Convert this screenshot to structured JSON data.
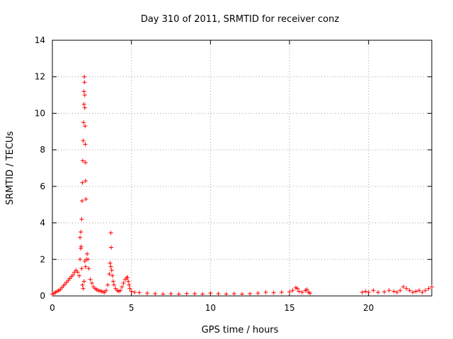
{
  "chart_data": {
    "type": "scatter",
    "title": "Day 310 of 2011, SRMTID for receiver conz",
    "xlabel": "GPS time / hours",
    "ylabel": "SRMTID / TECUs",
    "xlim": [
      0,
      24
    ],
    "ylim": [
      0,
      14
    ],
    "x_ticks": [
      0,
      5,
      10,
      15,
      20
    ],
    "y_ticks": [
      0,
      2,
      4,
      6,
      8,
      10,
      12,
      14
    ],
    "x_tick_labels": [
      "0",
      "5",
      "10",
      "15",
      "20"
    ],
    "y_tick_labels": [
      "0",
      "2",
      "4",
      "6",
      "8",
      "10",
      "12",
      "14"
    ],
    "grid": true,
    "marker": "+",
    "color": "#ff0000",
    "series": [
      {
        "name": "SRMTID",
        "x": [
          0.0,
          0.1,
          0.2,
          0.3,
          0.4,
          0.5,
          0.6,
          0.7,
          0.8,
          0.9,
          1.0,
          1.1,
          1.2,
          1.3,
          1.4,
          1.5,
          1.6,
          1.7,
          1.75,
          1.8,
          1.85,
          1.9,
          1.95,
          2.0,
          2.05,
          2.1,
          2.15,
          2.2,
          2.25,
          2.3,
          2.4,
          2.5,
          2.6,
          2.7,
          2.8,
          2.9,
          3.0,
          3.1,
          3.2,
          3.3,
          3.4,
          3.5,
          3.6,
          3.65,
          3.7,
          3.75,
          3.8,
          3.85,
          3.9,
          4.0,
          4.1,
          4.2,
          4.3,
          4.4,
          4.5,
          4.6,
          4.7,
          4.75,
          4.8,
          4.85,
          4.9,
          5.0,
          5.2,
          5.5,
          6.0,
          6.5,
          7.0,
          7.5,
          8.0,
          8.5,
          9.0,
          9.5,
          10.0,
          10.5,
          11.0,
          11.5,
          12.0,
          12.5,
          13.0,
          13.5,
          14.0,
          14.5,
          15.0,
          15.2,
          15.4,
          15.5,
          15.6,
          15.8,
          16.0,
          16.1,
          16.2,
          16.3,
          19.6,
          19.8,
          20.0,
          20.3,
          20.6,
          21.0,
          21.3,
          21.6,
          21.8,
          22.0,
          22.2,
          22.4,
          22.6,
          22.8,
          23.0,
          23.2,
          23.4,
          23.6,
          23.8,
          24.0,
          1.75,
          1.8,
          1.82,
          1.85,
          1.88,
          1.9,
          1.92,
          1.95,
          1.97,
          2.0,
          2.0,
          2.02,
          2.03,
          2.05,
          2.05,
          2.07,
          2.08,
          2.1,
          2.1,
          2.12,
          3.7,
          3.72
        ],
        "y": [
          0.1,
          0.15,
          0.2,
          0.25,
          0.3,
          0.35,
          0.45,
          0.55,
          0.65,
          0.75,
          0.85,
          0.95,
          1.05,
          1.15,
          1.3,
          1.4,
          1.3,
          1.1,
          2.0,
          2.6,
          1.5,
          0.6,
          0.4,
          0.8,
          1.9,
          1.6,
          2.0,
          2.3,
          2.0,
          1.5,
          0.9,
          0.7,
          0.5,
          0.4,
          0.35,
          0.3,
          0.28,
          0.25,
          0.22,
          0.2,
          0.3,
          0.6,
          1.2,
          1.8,
          1.6,
          1.4,
          1.1,
          0.8,
          0.6,
          0.4,
          0.3,
          0.25,
          0.3,
          0.5,
          0.7,
          0.9,
          1.0,
          1.0,
          0.8,
          0.6,
          0.4,
          0.25,
          0.2,
          0.18,
          0.15,
          0.12,
          0.1,
          0.12,
          0.1,
          0.13,
          0.12,
          0.1,
          0.15,
          0.12,
          0.1,
          0.12,
          0.1,
          0.12,
          0.15,
          0.2,
          0.18,
          0.2,
          0.22,
          0.3,
          0.45,
          0.4,
          0.25,
          0.2,
          0.3,
          0.35,
          0.2,
          0.15,
          0.2,
          0.25,
          0.2,
          0.3,
          0.2,
          0.22,
          0.3,
          0.25,
          0.2,
          0.3,
          0.5,
          0.4,
          0.3,
          0.2,
          0.25,
          0.3,
          0.2,
          0.3,
          0.4,
          0.5,
          3.2,
          3.5,
          2.7,
          4.2,
          5.2,
          6.2,
          7.4,
          8.5,
          9.5,
          10.5,
          11.2,
          12.0,
          11.7,
          11.0,
          10.3,
          9.3,
          8.3,
          7.3,
          6.3,
          5.3,
          3.45,
          2.65
        ]
      }
    ]
  }
}
